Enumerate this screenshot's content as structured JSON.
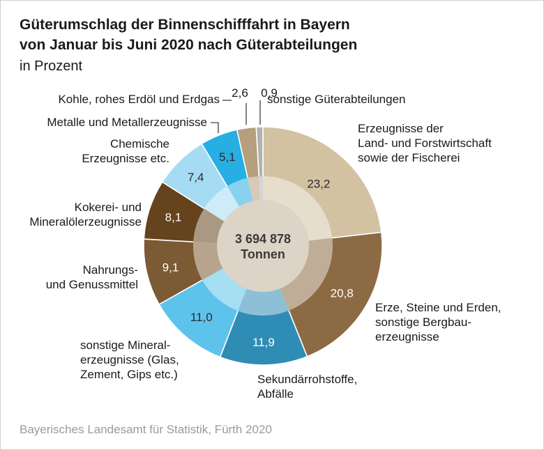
{
  "title_line1": "Güterumschlag der Binnenschifffahrt in Bayern",
  "title_line2": "von Januar bis Juni 2020 nach Güterabteilungen",
  "subtitle": "in Prozent",
  "source": "Bayerisches Landesamt für Statistik, Fürth 2020",
  "colors": {
    "landwirtschaft": "#d2c2a2",
    "erze": "#8c6a43",
    "sekundaer": "#2f8db5",
    "mineral": "#5ec3ea",
    "nahrung": "#7b5a34",
    "kokerei": "#65441d",
    "chemie": "#a6dcf3",
    "metalle": "#27aee3",
    "kohle": "#b59f7c",
    "sonstige": "#b2b2b2"
  },
  "chart_data": {
    "type": "pie",
    "center_label": [
      "3 694 878",
      "Tonnen"
    ],
    "slices": [
      {
        "label": [
          "Erzeugnisse der",
          "Land- und Forstwirtschaft",
          "sowie der Fischerei"
        ],
        "value": 23.2,
        "value_label": "23,2",
        "color_key": "landwirtschaft"
      },
      {
        "label": [
          "Erze, Steine und Erden,",
          "sonstige Bergbau-",
          "erzeugnisse"
        ],
        "value": 20.8,
        "value_label": "20,8",
        "color_key": "erze"
      },
      {
        "label": [
          "Sekundärrohstoffe,",
          "Abfälle"
        ],
        "value": 11.9,
        "value_label": "11,9",
        "color_key": "sekundaer"
      },
      {
        "label": [
          "sonstige Mineral-",
          "erzeugnisse (Glas,",
          "Zement, Gips etc.)"
        ],
        "value": 11.0,
        "value_label": "11,0",
        "color_key": "mineral"
      },
      {
        "label": [
          "Nahrungs-",
          "und Genussmittel"
        ],
        "value": 9.1,
        "value_label": "9,1",
        "color_key": "nahrung"
      },
      {
        "label": [
          "Kokerei- und",
          "Mineralölerzeugnisse"
        ],
        "value": 8.1,
        "value_label": "8,1",
        "color_key": "kokerei"
      },
      {
        "label": [
          "Chemische",
          "Erzeugnisse etc."
        ],
        "value": 7.4,
        "value_label": "7,4",
        "color_key": "chemie"
      },
      {
        "label": [
          "Metalle und Metallerzeugnisse"
        ],
        "value": 5.1,
        "value_label": "5,1",
        "color_key": "metalle"
      },
      {
        "label": [
          "Kohle, rohes Erdöl und Erdgas"
        ],
        "value": 2.6,
        "value_label": "2,6",
        "color_key": "kohle"
      },
      {
        "label": [
          "sonstige Güterabteilungen"
        ],
        "value": 0.9,
        "value_label": "0,9",
        "color_key": "sonstige"
      }
    ]
  }
}
